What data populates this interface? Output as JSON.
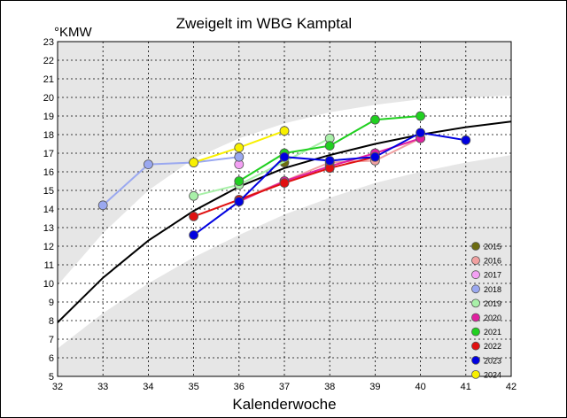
{
  "chart_data": {
    "type": "line",
    "title": "Zweigelt im WBG Kamptal",
    "xlabel": "Kalenderwoche",
    "ylabel": "°KMW",
    "xlim": [
      32,
      42
    ],
    "ylim": [
      5,
      23
    ],
    "x_ticks": [
      32,
      33,
      34,
      35,
      36,
      37,
      38,
      39,
      40,
      41,
      42
    ],
    "y_ticks": [
      5,
      6,
      7,
      8,
      9,
      10,
      11,
      12,
      13,
      14,
      15,
      16,
      17,
      18,
      19,
      20,
      21,
      22,
      23
    ],
    "grid": true,
    "legend_position": "bottom-right",
    "reference_curve": [
      [
        32,
        7.9
      ],
      [
        33,
        10.3
      ],
      [
        34,
        12.3
      ],
      [
        35,
        13.9
      ],
      [
        36,
        15.2
      ],
      [
        37,
        16.2
      ],
      [
        38,
        16.9
      ],
      [
        39,
        17.5
      ],
      [
        40,
        18.0
      ],
      [
        41,
        18.4
      ],
      [
        42,
        18.7
      ]
    ],
    "band_upper": [
      [
        32,
        9.9
      ],
      [
        33,
        12.7
      ],
      [
        34,
        15.0
      ],
      [
        35,
        16.7
      ],
      [
        36,
        17.8
      ],
      [
        37,
        18.6
      ],
      [
        38,
        19.2
      ],
      [
        39,
        19.6
      ],
      [
        40,
        19.9
      ],
      [
        41,
        20.0
      ],
      [
        42,
        20.1
      ]
    ],
    "band_lower": [
      [
        32,
        6.5
      ],
      [
        33,
        8.4
      ],
      [
        34,
        10.0
      ],
      [
        35,
        11.4
      ],
      [
        36,
        12.6
      ],
      [
        37,
        13.7
      ],
      [
        38,
        14.6
      ],
      [
        39,
        15.4
      ],
      [
        40,
        16.0
      ],
      [
        41,
        16.5
      ],
      [
        42,
        16.9
      ]
    ],
    "series": [
      {
        "name": "2015",
        "color": "#6b6b10",
        "x": [
          37
        ],
        "y": [
          16.5
        ]
      },
      {
        "name": "2016",
        "color": "#f0a0a0",
        "x": [
          36,
          37,
          38,
          39,
          40
        ],
        "y": [
          14.5,
          15.5,
          16.5,
          16.6,
          17.8
        ]
      },
      {
        "name": "2017",
        "color": "#f4a0f4",
        "x": [
          36
        ],
        "y": [
          16.4
        ]
      },
      {
        "name": "2018",
        "color": "#9aa8f0",
        "x": [
          33,
          34,
          35,
          36
        ],
        "y": [
          14.2,
          16.4,
          16.5,
          16.8
        ]
      },
      {
        "name": "2019",
        "color": "#a8f0a8",
        "x": [
          35,
          36,
          38
        ],
        "y": [
          14.7,
          15.3,
          17.8
        ]
      },
      {
        "name": "2020",
        "color": "#e020a0",
        "x": [
          36,
          37,
          38,
          39,
          40
        ],
        "y": [
          14.4,
          15.5,
          16.3,
          17.0,
          17.8
        ]
      },
      {
        "name": "2021",
        "color": "#20d020",
        "x": [
          36,
          37,
          38,
          39,
          40
        ],
        "y": [
          15.5,
          17.0,
          17.4,
          18.8,
          19.0
        ]
      },
      {
        "name": "2022",
        "color": "#e01010",
        "x": [
          35,
          36,
          37,
          38,
          39
        ],
        "y": [
          13.6,
          14.5,
          15.4,
          16.2,
          16.8
        ]
      },
      {
        "name": "2023",
        "color": "#0000e0",
        "x": [
          35,
          36,
          37,
          38,
          39,
          40,
          41
        ],
        "y": [
          12.6,
          14.4,
          16.8,
          16.6,
          16.8,
          18.1,
          17.7
        ]
      },
      {
        "name": "2024",
        "color": "#f8f000",
        "x": [
          35,
          36,
          37
        ],
        "y": [
          16.5,
          17.3,
          18.2
        ]
      }
    ]
  }
}
